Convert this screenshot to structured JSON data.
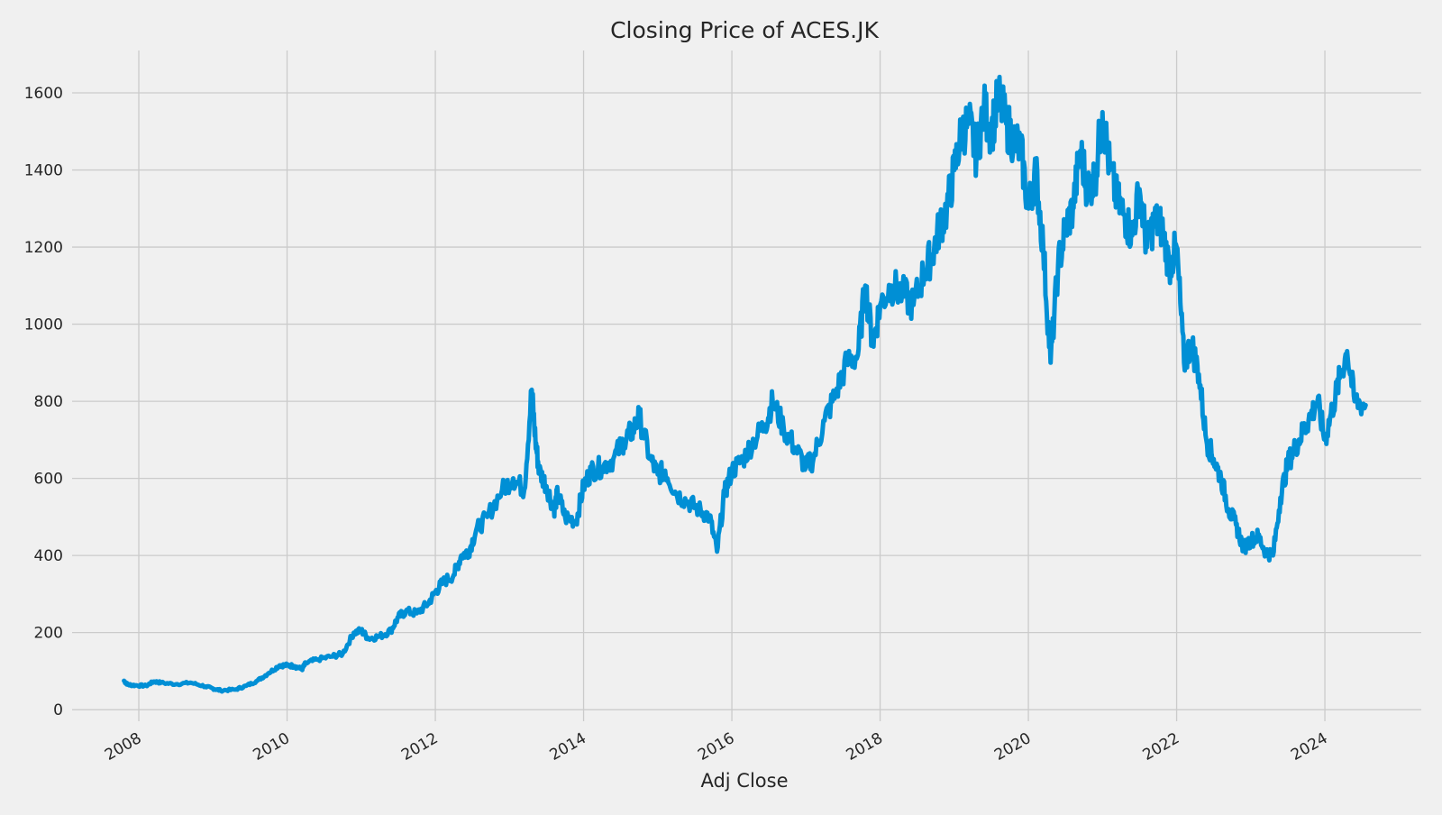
{
  "chart_data": {
    "type": "line",
    "title": "Closing Price of ACES.JK",
    "xlabel": "Adj Close",
    "ylabel": "",
    "xlim": [
      2007.1,
      2025.3
    ],
    "ylim": [
      -30,
      1710
    ],
    "grid": true,
    "legend": "none",
    "x_ticks": [
      "2008",
      "2010",
      "2012",
      "2014",
      "2016",
      "2018",
      "2020",
      "2022",
      "2024"
    ],
    "y_ticks": [
      0,
      200,
      400,
      600,
      800,
      1000,
      1200,
      1400,
      1600
    ],
    "series": [
      {
        "name": "",
        "color": "#008fd5",
        "x": [
          2007.8,
          2007.85,
          2007.95,
          2008.1,
          2008.2,
          2008.3,
          2008.5,
          2008.7,
          2008.9,
          2009.0,
          2009.1,
          2009.3,
          2009.45,
          2009.6,
          2009.75,
          2009.9,
          2010.0,
          2010.1,
          2010.2,
          2010.25,
          2010.4,
          2010.6,
          2010.75,
          2010.9,
          2011.0,
          2011.1,
          2011.25,
          2011.4,
          2011.5,
          2011.6,
          2011.75,
          2011.9,
          2012.0,
          2012.1,
          2012.25,
          2012.35,
          2012.45,
          2012.55,
          2012.7,
          2012.9,
          2013.05,
          2013.2,
          2013.3,
          2013.35,
          2013.4,
          2013.5,
          2013.6,
          2013.65,
          2013.75,
          2013.9,
          2014.0,
          2014.1,
          2014.25,
          2014.4,
          2014.55,
          2014.65,
          2014.75,
          2014.9,
          2015.0,
          2015.1,
          2015.25,
          2015.4,
          2015.55,
          2015.7,
          2015.8,
          2015.9,
          2016.0,
          2016.15,
          2016.3,
          2016.45,
          2016.55,
          2016.7,
          2016.85,
          2017.0,
          2017.1,
          2017.25,
          2017.4,
          2017.55,
          2017.7,
          2017.8,
          2017.9,
          2018.0,
          2018.15,
          2018.3,
          2018.45,
          2018.6,
          2018.7,
          2018.8,
          2018.9,
          2019.0,
          2019.1,
          2019.2,
          2019.3,
          2019.4,
          2019.5,
          2019.6,
          2019.7,
          2019.8,
          2019.9,
          2020.0,
          2020.1,
          2020.2,
          2020.3,
          2020.4,
          2020.5,
          2020.6,
          2020.7,
          2020.8,
          2020.9,
          2021.0,
          2021.1,
          2021.2,
          2021.3,
          2021.4,
          2021.5,
          2021.6,
          2021.7,
          2021.8,
          2021.9,
          2022.0,
          2022.1,
          2022.2,
          2022.3,
          2022.4,
          2022.5,
          2022.6,
          2022.7,
          2022.8,
          2022.9,
          2023.0,
          2023.1,
          2023.2,
          2023.3,
          2023.4,
          2023.5,
          2023.6,
          2023.7,
          2023.8,
          2023.9,
          2024.0,
          2024.1,
          2024.2,
          2024.3,
          2024.4,
          2024.55
        ],
        "y": [
          75,
          65,
          63,
          62,
          73,
          70,
          66,
          70,
          60,
          55,
          50,
          52,
          62,
          75,
          95,
          115,
          115,
          113,
          105,
          120,
          130,
          138,
          145,
          200,
          205,
          185,
          190,
          205,
          240,
          255,
          250,
          275,
          305,
          330,
          350,
          400,
          410,
          465,
          500,
          570,
          600,
          570,
          830,
          700,
          620,
          580,
          520,
          560,
          500,
          490,
          580,
          620,
          630,
          650,
          700,
          720,
          760,
          650,
          610,
          620,
          560,
          540,
          520,
          500,
          410,
          560,
          620,
          650,
          700,
          740,
          800,
          730,
          680,
          630,
          650,
          750,
          820,
          900,
          920,
          1100,
          950,
          1050,
          1100,
          1080,
          1050,
          1140,
          1180,
          1250,
          1300,
          1400,
          1500,
          1520,
          1440,
          1560,
          1500,
          1590,
          1520,
          1480,
          1450,
          1300,
          1400,
          1200,
          900,
          1150,
          1250,
          1300,
          1450,
          1350,
          1380,
          1550,
          1400,
          1320,
          1280,
          1230,
          1350,
          1200,
          1270,
          1250,
          1150,
          1200,
          900,
          950,
          870,
          700,
          650,
          600,
          520,
          480,
          420,
          440,
          450,
          410,
          400,
          550,
          640,
          680,
          720,
          760,
          800,
          700,
          780,
          860,
          930,
          800,
          790
        ]
      }
    ]
  }
}
